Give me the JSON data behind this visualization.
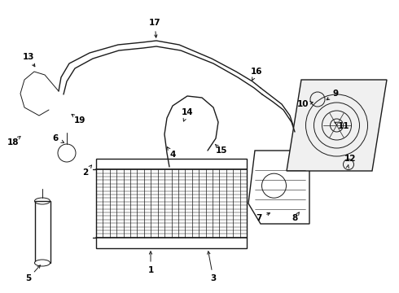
{
  "background_color": "#ffffff",
  "line_color": "#1a1a1a",
  "label_color": "#000000",
  "fig_width": 4.9,
  "fig_height": 3.6,
  "dpi": 100,
  "label_fontsize": 7.5,
  "label_fontweight": "bold"
}
